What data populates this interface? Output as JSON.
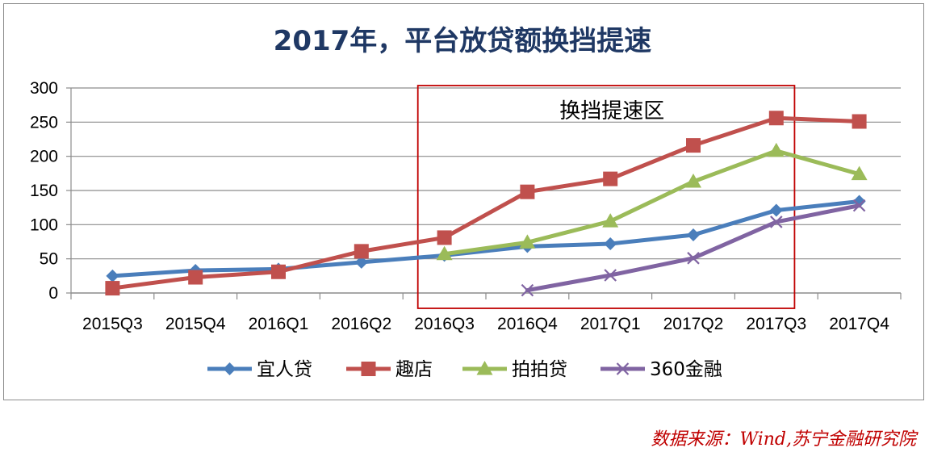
{
  "chart_data": {
    "type": "line",
    "title": "2017年，平台放贷额换挡提速",
    "categories": [
      "2015Q3",
      "2015Q4",
      "2016Q1",
      "2016Q2",
      "2016Q3",
      "2016Q4",
      "2017Q1",
      "2017Q2",
      "2017Q3",
      "2017Q4"
    ],
    "ylim": [
      0,
      300
    ],
    "yticks": [
      0,
      50,
      100,
      150,
      200,
      250,
      300
    ],
    "grid": true,
    "legend_position": "bottom",
    "series": [
      {
        "name": "宜人贷",
        "marker": "diamond",
        "color": "#4a7ebb",
        "values": [
          25,
          33,
          35,
          45,
          55,
          68,
          72,
          85,
          121,
          134
        ]
      },
      {
        "name": "趣店",
        "marker": "square",
        "color": "#c0504d",
        "values": [
          7,
          23,
          31,
          61,
          81,
          148,
          167,
          216,
          256,
          251
        ]
      },
      {
        "name": "拍拍贷",
        "marker": "triangle",
        "color": "#9bbb59",
        "values": [
          null,
          null,
          null,
          null,
          57,
          74,
          105,
          163,
          208,
          174
        ]
      },
      {
        "name": "360金融",
        "marker": "x",
        "color": "#8064a2",
        "values": [
          null,
          null,
          null,
          null,
          null,
          4,
          26,
          51,
          104,
          128
        ]
      }
    ],
    "highlight_region": {
      "label": "换挡提速区",
      "from": "2016Q3",
      "to": "2017Q3",
      "color": "#c00000"
    }
  },
  "source_note": "数据来源：Wind,苏宁金融研究院"
}
